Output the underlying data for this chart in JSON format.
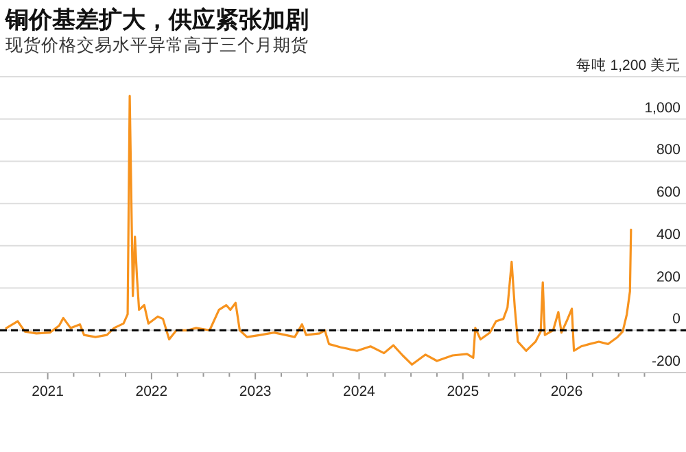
{
  "chart_data": {
    "type": "line",
    "title": "铜价基差扩大，供应紧张加剧",
    "subtitle": "现货价格交易水平异常高于三个月期货",
    "x": [
      2020.6,
      2020.71,
      2020.78,
      2020.89,
      2021.02,
      2021.11,
      2021.15,
      2021.22,
      2021.31,
      2021.35,
      2021.46,
      2021.57,
      2021.64,
      2021.73,
      2021.77,
      2021.79,
      2021.82,
      2021.84,
      2021.86,
      2021.88,
      2021.93,
      2021.97,
      2022.06,
      2022.11,
      2022.17,
      2022.24,
      2022.35,
      2022.43,
      2022.56,
      2022.65,
      2022.72,
      2022.76,
      2022.81,
      2022.85,
      2022.92,
      2023.05,
      2023.18,
      2023.29,
      2023.38,
      2023.45,
      2023.49,
      2023.62,
      2023.67,
      2023.71,
      2023.82,
      2023.98,
      2024.11,
      2024.24,
      2024.33,
      2024.42,
      2024.51,
      2024.64,
      2024.75,
      2024.9,
      2025.04,
      2025.1,
      2025.12,
      2025.17,
      2025.26,
      2025.32,
      2025.39,
      2025.43,
      2025.47,
      2025.5,
      2025.53,
      2025.61,
      2025.7,
      2025.75,
      2025.77,
      2025.79,
      2025.87,
      2025.92,
      2025.95,
      2026.0,
      2026.05,
      2026.07,
      2026.14,
      2026.22,
      2026.31,
      2026.4,
      2026.49,
      2026.54,
      2026.58,
      2026.61,
      2026.62
    ],
    "series": [
      {
        "color": "#f7931e",
        "values": [
          10,
          43,
          -6,
          -15,
          -11,
          22,
          58,
          11,
          28,
          -22,
          -32,
          -22,
          11,
          32,
          76,
          1109,
          162,
          443,
          249,
          97,
          119,
          32,
          65,
          54,
          -43,
          0,
          0,
          11,
          0,
          97,
          119,
          97,
          130,
          0,
          -32,
          -22,
          -11,
          -22,
          -32,
          28,
          -22,
          -15,
          0,
          -65,
          -80,
          -97,
          -76,
          -108,
          -71,
          -119,
          -162,
          -115,
          -145,
          -119,
          -112,
          -130,
          11,
          -43,
          -11,
          43,
          54,
          108,
          324,
          108,
          -54,
          -97,
          -54,
          -6,
          227,
          -22,
          0,
          86,
          -11,
          43,
          102,
          -97,
          -76,
          -65,
          -54,
          -65,
          -32,
          -6,
          76,
          184,
          476
        ]
      }
    ],
    "xlim": [
      2020.54,
      2027.15
    ],
    "xticks": [
      2021,
      {
        "value": 2021.25,
        "label": null
      },
      {
        "value": 2021.5,
        "label": null
      },
      {
        "value": 2021.75,
        "label": null
      },
      2022,
      {
        "value": 2022.25,
        "label": null
      },
      {
        "value": 2022.5,
        "label": null
      },
      {
        "value": 2022.75,
        "label": null
      },
      2023,
      {
        "value": 2023.25,
        "label": null
      },
      {
        "value": 2023.5,
        "label": null
      },
      {
        "value": 2023.75,
        "label": null
      },
      2024,
      {
        "value": 2024.25,
        "label": null
      },
      {
        "value": 2024.5,
        "label": null
      },
      {
        "value": 2024.75,
        "label": null
      },
      2025,
      {
        "value": 2025.25,
        "label": null
      },
      {
        "value": 2025.5,
        "label": null
      },
      {
        "value": 2025.75,
        "label": null
      },
      2026,
      {
        "value": 2026.25,
        "label": null
      },
      {
        "value": 2026.5,
        "label": null
      },
      {
        "value": 2026.75,
        "label": null
      }
    ],
    "ylim": [
      -200,
      1200
    ],
    "yticks": [
      -200,
      0,
      200,
      400,
      600,
      800,
      {
        "value": 1000,
        "label": "1,000"
      },
      {
        "value": 1200,
        "label": "每吨 1,200 美元"
      }
    ],
    "grid": "y",
    "ref_lines": [
      {
        "axis": "y",
        "value": 0,
        "color": "#000000",
        "line_style": "dashed"
      }
    ]
  }
}
